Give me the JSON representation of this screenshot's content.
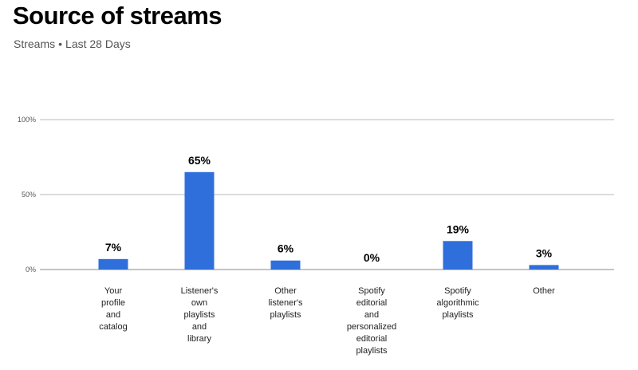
{
  "header": {
    "title": "Source of streams",
    "subtitle_metric": "Streams",
    "subtitle_separator": "•",
    "subtitle_period": "Last 28 Days"
  },
  "chart_data": {
    "type": "bar",
    "title": "Source of streams",
    "subtitle": "Streams • Last 28 Days",
    "categories": [
      "Your profile and catalog",
      "Listener's own playlists and library",
      "Other listener's playlists",
      "Spotify editorial and personalized editorial playlists",
      "Spotify algorithmic playlists",
      "Other"
    ],
    "category_lines": [
      [
        "Your",
        "profile",
        "and",
        "catalog"
      ],
      [
        "Listener's",
        "own",
        "playlists",
        "and",
        "library"
      ],
      [
        "Other",
        "listener's",
        "playlists"
      ],
      [
        "Spotify",
        "editorial",
        "and",
        "personalized",
        "editorial",
        "playlists"
      ],
      [
        "Spotify",
        "algorithmic",
        "playlists"
      ],
      [
        "Other"
      ]
    ],
    "values": [
      7,
      65,
      6,
      0,
      19,
      3
    ],
    "value_labels": [
      "7%",
      "65%",
      "6%",
      "0%",
      "19%",
      "3%"
    ],
    "yticks": [
      "0%",
      "50%",
      "100%"
    ],
    "ylim": [
      0,
      100
    ],
    "grid": true,
    "color": "#2f6fdc"
  }
}
